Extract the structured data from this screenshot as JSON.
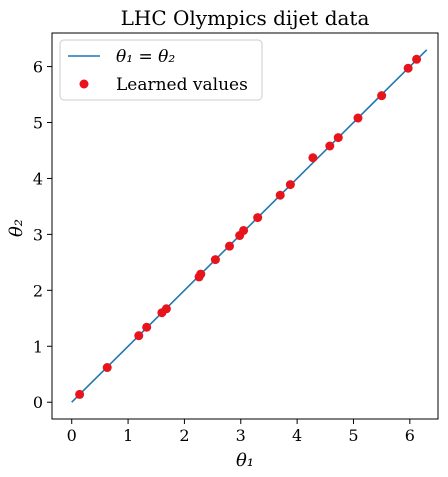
{
  "chart_data": {
    "type": "scatter",
    "title": "LHC Olympics dijet data",
    "xlabel": "θ₁",
    "ylabel": "θ₂",
    "xlim": [
      -0.35,
      6.5
    ],
    "ylim": [
      -0.3,
      6.6
    ],
    "xticks": [
      0,
      1,
      2,
      3,
      4,
      5,
      6
    ],
    "yticks": [
      0,
      1,
      2,
      3,
      4,
      5,
      6
    ],
    "legend_position": "top-left",
    "series": [
      {
        "name": "θ₁ = θ₂",
        "kind": "line",
        "color": "#1f77b4",
        "x": [
          0,
          6.3
        ],
        "y": [
          0,
          6.3
        ]
      },
      {
        "name": "Learned values",
        "kind": "scatter",
        "color": "#e8141c",
        "points": [
          [
            0.14,
            0.14
          ],
          [
            0.63,
            0.62
          ],
          [
            1.19,
            1.19
          ],
          [
            1.33,
            1.34
          ],
          [
            1.6,
            1.6
          ],
          [
            1.68,
            1.67
          ],
          [
            2.26,
            2.24
          ],
          [
            2.29,
            2.29
          ],
          [
            2.55,
            2.55
          ],
          [
            2.8,
            2.79
          ],
          [
            2.98,
            2.98
          ],
          [
            3.05,
            3.07
          ],
          [
            3.3,
            3.3
          ],
          [
            3.7,
            3.7
          ],
          [
            3.88,
            3.89
          ],
          [
            4.28,
            4.37
          ],
          [
            4.58,
            4.58
          ],
          [
            4.73,
            4.73
          ],
          [
            5.08,
            5.08
          ],
          [
            5.5,
            5.48
          ],
          [
            5.97,
            5.97
          ],
          [
            6.12,
            6.13
          ]
        ]
      }
    ]
  }
}
